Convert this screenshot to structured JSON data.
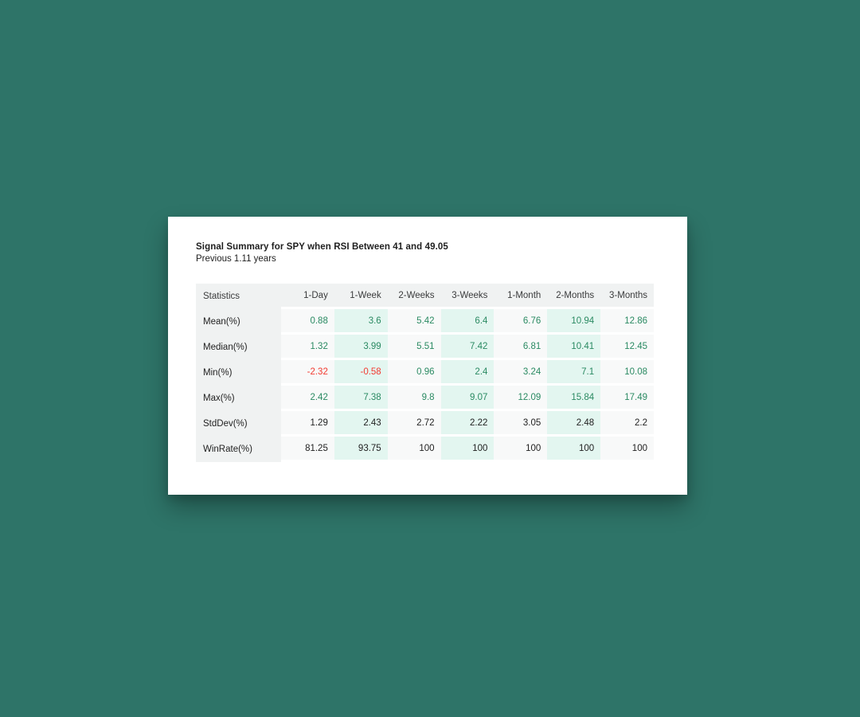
{
  "card": {
    "title": "Signal Summary for SPY when RSI Between 41 and 49.05",
    "subtitle": "Previous 1.11 years"
  },
  "table": {
    "columns": [
      "Statistics",
      "1-Day",
      "1-Week",
      "2-Weeks",
      "3-Weeks",
      "1-Month",
      "2-Months",
      "3-Months"
    ],
    "rows": [
      {
        "label": "Mean(%)",
        "values": [
          "0.88",
          "3.6",
          "5.42",
          "6.4",
          "6.76",
          "10.94",
          "12.86"
        ],
        "tones": [
          "pos",
          "pos",
          "pos",
          "pos",
          "pos",
          "pos",
          "pos"
        ]
      },
      {
        "label": "Median(%)",
        "values": [
          "1.32",
          "3.99",
          "5.51",
          "7.42",
          "6.81",
          "10.41",
          "12.45"
        ],
        "tones": [
          "pos",
          "pos",
          "pos",
          "pos",
          "pos",
          "pos",
          "pos"
        ]
      },
      {
        "label": "Min(%)",
        "values": [
          "-2.32",
          "-0.58",
          "0.96",
          "2.4",
          "3.24",
          "7.1",
          "10.08"
        ],
        "tones": [
          "neg",
          "neg",
          "pos",
          "pos",
          "pos",
          "pos",
          "pos"
        ]
      },
      {
        "label": "Max(%)",
        "values": [
          "2.42",
          "7.38",
          "9.8",
          "9.07",
          "12.09",
          "15.84",
          "17.49"
        ],
        "tones": [
          "pos",
          "pos",
          "pos",
          "pos",
          "pos",
          "pos",
          "pos"
        ]
      },
      {
        "label": "StdDev(%)",
        "values": [
          "1.29",
          "2.43",
          "2.72",
          "2.22",
          "3.05",
          "2.48",
          "2.2"
        ],
        "tones": [
          "neu",
          "neu",
          "neu",
          "neu",
          "neu",
          "neu",
          "neu"
        ]
      },
      {
        "label": "WinRate(%)",
        "values": [
          "81.25",
          "93.75",
          "100",
          "100",
          "100",
          "100",
          "100"
        ],
        "tones": [
          "neu",
          "neu",
          "neu",
          "neu",
          "neu",
          "neu",
          "neu"
        ]
      }
    ]
  },
  "colors": {
    "background": "#2e7468",
    "card": "#ffffff",
    "header_fill": "#f0f2f2",
    "light_column_fill": "#f8f9f9",
    "mint_column_fill": "#e3f6f0",
    "positive_value": "#2a8a62",
    "negative_value": "#f23b31",
    "neutral_value": "#1f1f1f",
    "header_text": "#3a3b3c",
    "title_text": "#1f1f1f"
  }
}
